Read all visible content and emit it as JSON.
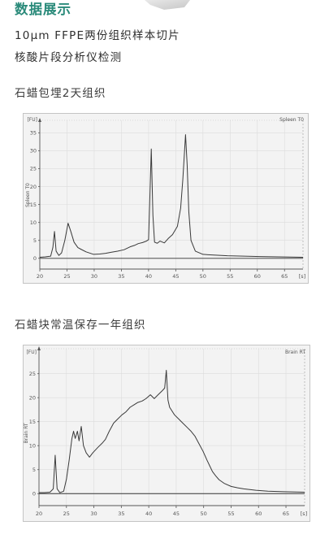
{
  "header": {
    "title": "数据展示",
    "line1": "10μm FFPE两份组织样本切片",
    "line2": "核酸片段分析仪检测"
  },
  "sections": [
    {
      "label": "石蜡包埋2天组织"
    },
    {
      "label": "石蜡块常温保存一年组织"
    }
  ],
  "colors": {
    "accent": "#2a8a7a",
    "trace": "#3a3a3a"
  },
  "chart_data": [
    {
      "type": "line",
      "title": "Spleen T0",
      "ylabel": "Spleen T0",
      "x_unit": "[s]",
      "y_unit": "[FU]",
      "xlim": [
        20,
        68.4
      ],
      "ylim": [
        -3,
        38.5
      ],
      "x_ticks": [
        20,
        25,
        30,
        35,
        40,
        45,
        50,
        55,
        60,
        65
      ],
      "y_ticks": [
        0,
        5,
        10,
        15,
        20,
        25,
        30,
        35
      ],
      "grid": true,
      "series": [
        {
          "x": [
            20,
            21,
            22,
            22.4,
            22.7,
            23,
            23.5,
            24,
            24.6,
            25.2,
            25.7,
            26.3,
            27,
            27.6,
            28.5,
            29.9,
            31,
            32.1,
            33.2,
            34.3,
            35.5,
            36.6,
            37.4,
            38.1,
            38.9,
            39.6,
            40,
            40.2,
            40.5,
            40.8,
            41.1,
            41.6,
            42.1,
            42.9,
            43.6,
            44.4,
            45.3,
            45.9,
            46.3,
            46.8,
            47.1,
            47.4,
            47.8,
            48.6,
            50,
            52,
            54.5,
            57.5,
            60.5,
            64,
            68.4
          ],
          "y": [
            0.3,
            0.4,
            0.6,
            3,
            7.5,
            2,
            0.8,
            1.5,
            5,
            9.8,
            7.5,
            4.5,
            3,
            2.5,
            1.8,
            1.1,
            1.2,
            1.4,
            1.7,
            2,
            2.4,
            3.2,
            3.6,
            4.1,
            4.4,
            4.8,
            5.2,
            15,
            30.5,
            12,
            4.5,
            4.2,
            4.8,
            4.3,
            5.5,
            6.6,
            8.9,
            14,
            22,
            34.5,
            26,
            13,
            5,
            2,
            1.1,
            0.9,
            0.7,
            0.6,
            0.5,
            0.4,
            0.3
          ]
        }
      ]
    },
    {
      "type": "line",
      "title": "Brain RT",
      "ylabel": "Brain RT",
      "x_unit": "[s]",
      "y_unit": "[FU]",
      "xlim": [
        20,
        68.4
      ],
      "ylim": [
        -2.5,
        30.2
      ],
      "x_ticks": [
        20,
        25,
        30,
        35,
        40,
        45,
        50,
        55,
        60,
        65
      ],
      "y_ticks": [
        0,
        5,
        10,
        15,
        20,
        25
      ],
      "grid": true,
      "series": [
        {
          "x": [
            20,
            21,
            22,
            22.6,
            22.95,
            23.3,
            23.8,
            24.5,
            25,
            25.5,
            26,
            26.3,
            26.6,
            27,
            27.3,
            27.7,
            28.1,
            28.6,
            29.2,
            29.8,
            30.7,
            31.5,
            32.1,
            32.8,
            33.6,
            34.3,
            35.1,
            35.8,
            36.6,
            37.3,
            38,
            38.8,
            39.5,
            40.3,
            41,
            41.7,
            42.5,
            42.9,
            43.2,
            43.5,
            43.8,
            44.7,
            45.5,
            46.2,
            47,
            47.7,
            48.4,
            49.1,
            49.9,
            50.6,
            51.1,
            51.6,
            52.2,
            52.8,
            53.8,
            55,
            56.2,
            57.3,
            59.5,
            61.7,
            64.5,
            68.4
          ],
          "y": [
            0.2,
            0.2,
            0.3,
            1,
            8,
            1,
            0.2,
            0.5,
            3,
            7,
            11.5,
            13,
            11.5,
            13,
            11,
            14,
            10,
            8.5,
            7.6,
            8.5,
            9.6,
            10.5,
            11.3,
            13,
            14.7,
            15.5,
            16.4,
            17,
            18,
            18.5,
            19,
            19.3,
            19.8,
            20.6,
            19.8,
            20.6,
            21.5,
            22,
            25.7,
            19.5,
            18,
            16.4,
            15.5,
            14.7,
            13.8,
            13,
            12,
            10.5,
            8.8,
            7,
            5.8,
            4.6,
            3.7,
            2.9,
            2.1,
            1.5,
            1.2,
            1,
            0.7,
            0.5,
            0.4,
            0.3
          ]
        }
      ]
    }
  ]
}
